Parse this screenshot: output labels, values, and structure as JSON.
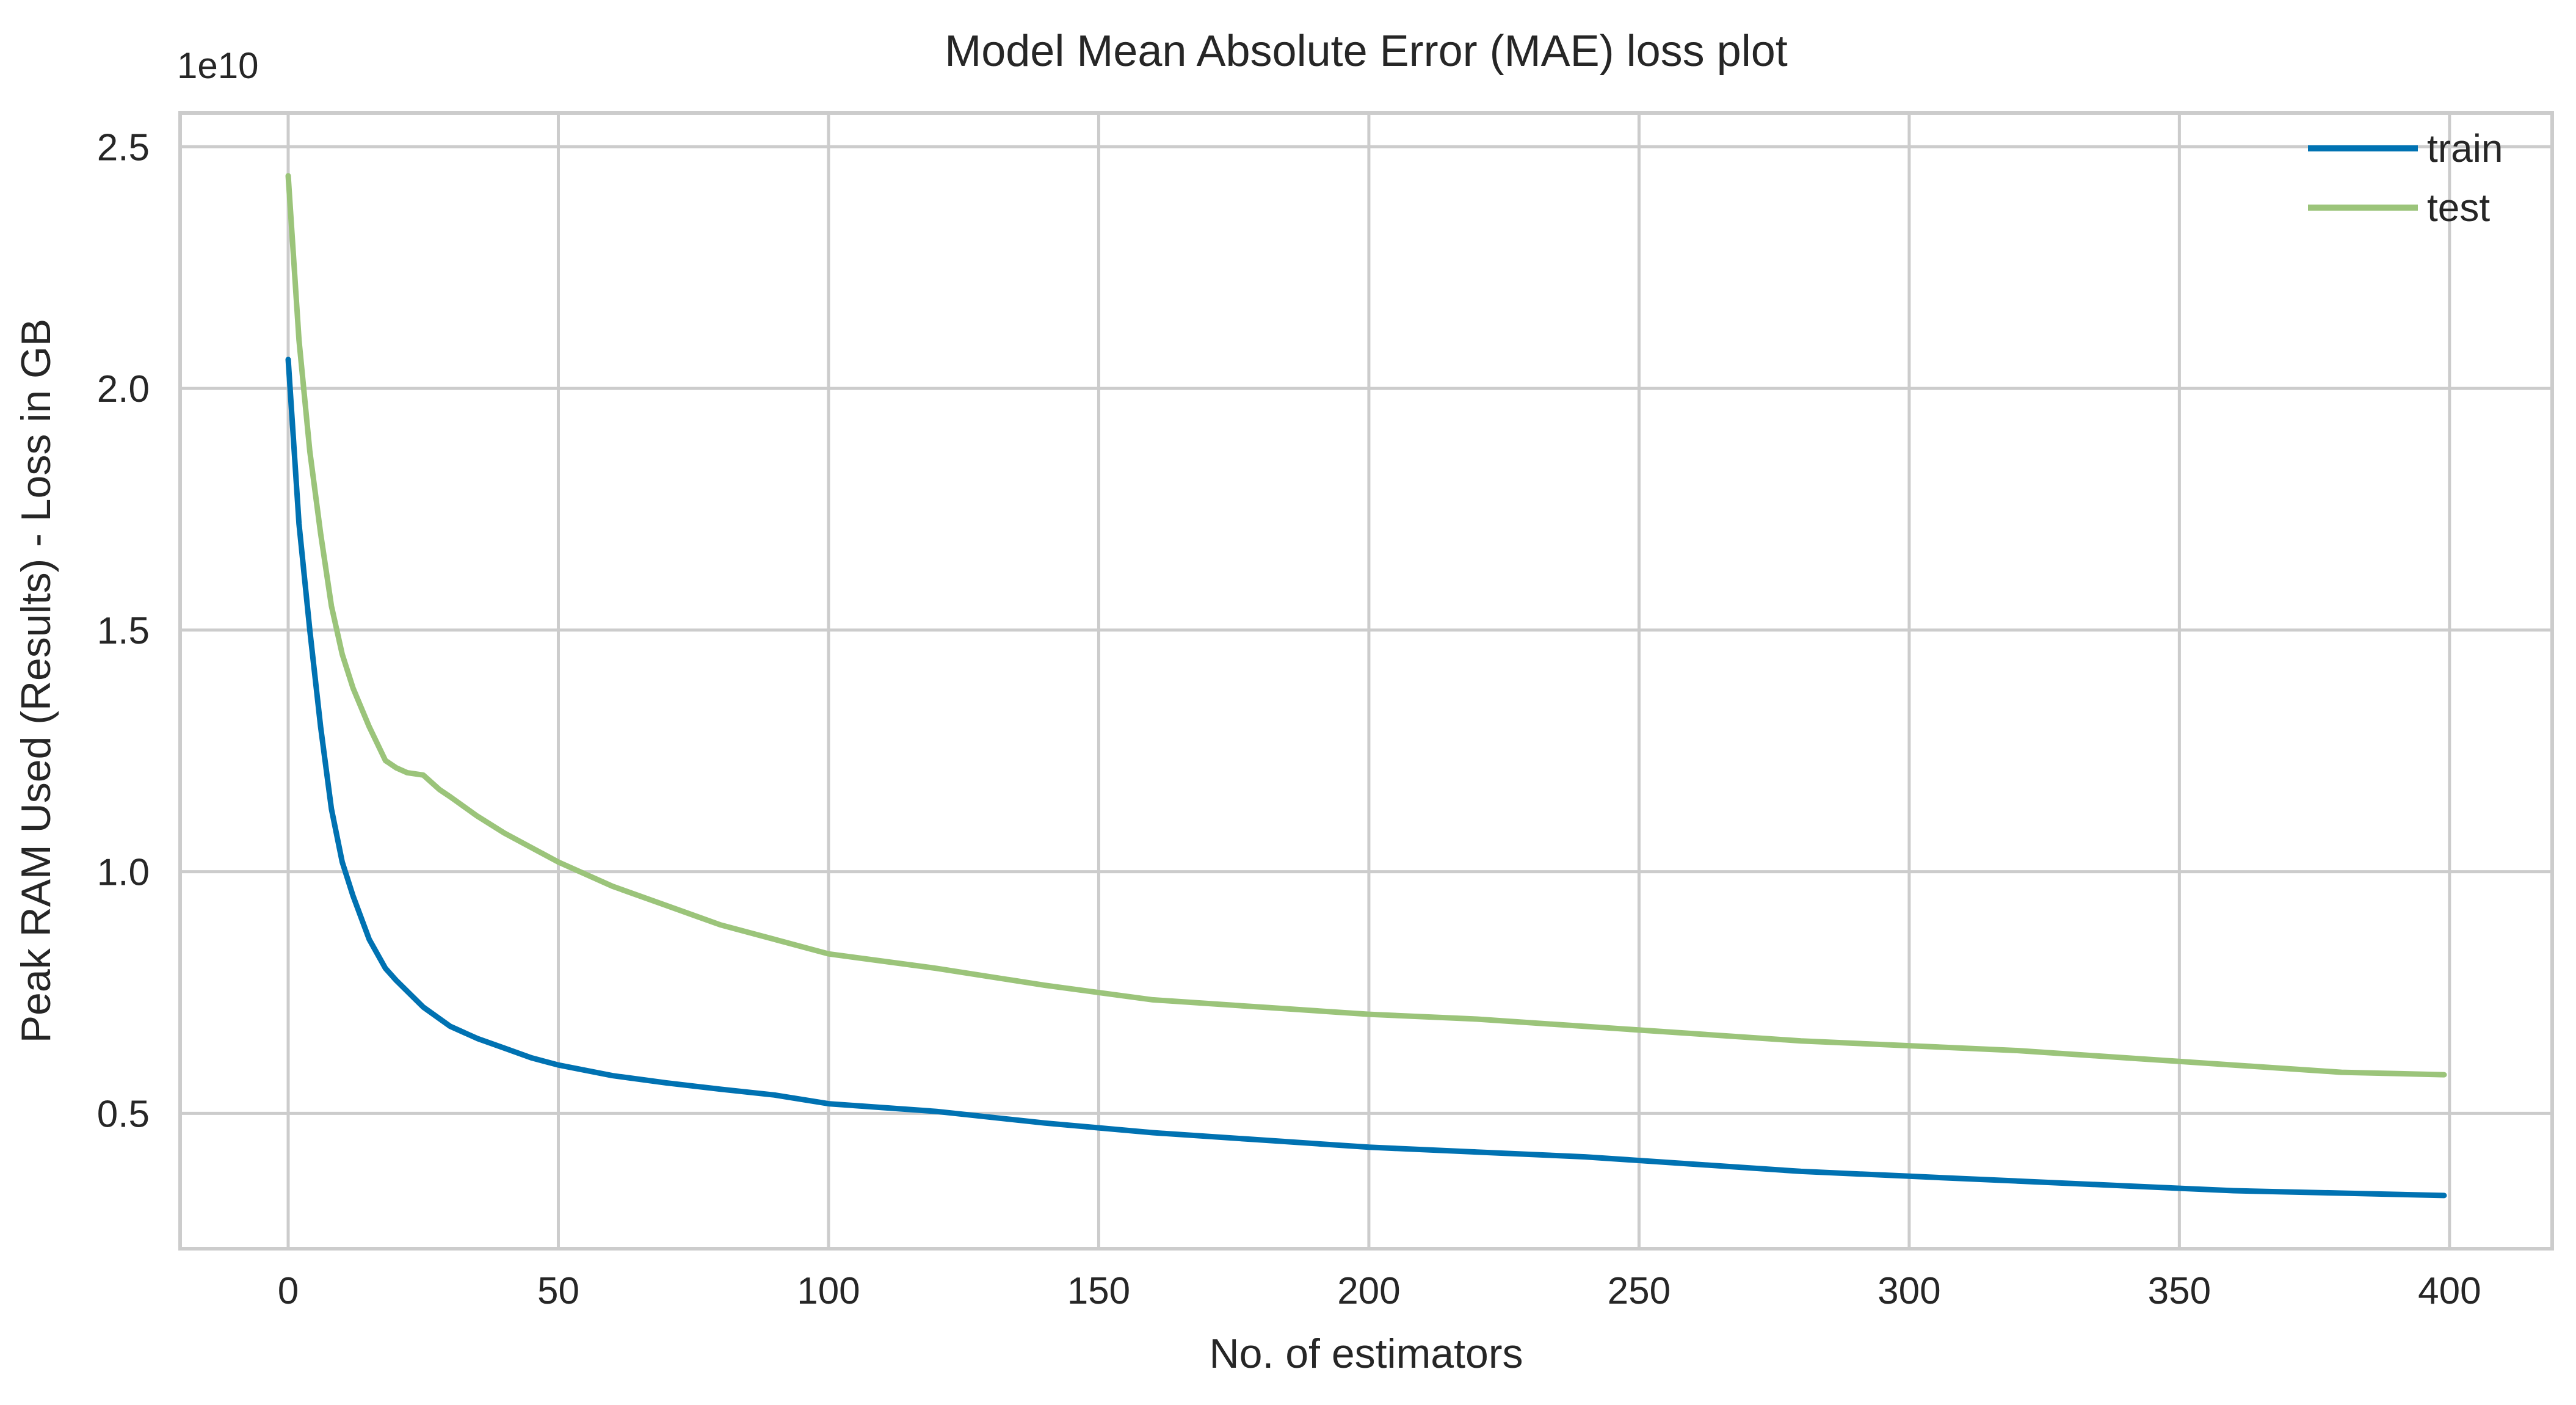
{
  "chart_data": {
    "type": "line",
    "title": "Model Mean Absolute Error (MAE) loss plot",
    "xlabel": "No. of estimators",
    "ylabel": "Peak RAM Used (Results) - Loss in GB",
    "y_offset_label": "1e10",
    "xlim": [
      -20,
      419
    ],
    "ylim": [
      0.22,
      2.57
    ],
    "y_scale_factor": 10000000000,
    "x_ticks": [
      0,
      50,
      100,
      150,
      200,
      250,
      300,
      350,
      400
    ],
    "x_tick_labels": [
      "0",
      "50",
      "100",
      "150",
      "200",
      "250",
      "300",
      "350",
      "400"
    ],
    "y_ticks": [
      0.5,
      1.0,
      1.5,
      2.0,
      2.5
    ],
    "y_tick_labels": [
      "0.5",
      "1.0",
      "1.5",
      "2.0",
      "2.5"
    ],
    "grid": true,
    "legend_position": "top-right",
    "colors": {
      "train": "#0072b2",
      "test": "#9bc47a",
      "grid": "#cccccc",
      "frame": "#cccccc"
    },
    "series": [
      {
        "name": "train",
        "x": [
          0,
          2,
          4,
          6,
          8,
          10,
          12,
          15,
          18,
          20,
          25,
          30,
          35,
          40,
          45,
          50,
          60,
          70,
          80,
          90,
          100,
          120,
          140,
          160,
          180,
          200,
          220,
          240,
          260,
          280,
          300,
          320,
          340,
          360,
          380,
          399
        ],
        "y": [
          2.06,
          1.72,
          1.5,
          1.3,
          1.13,
          1.02,
          0.95,
          0.86,
          0.8,
          0.775,
          0.72,
          0.68,
          0.655,
          0.635,
          0.615,
          0.6,
          0.578,
          0.563,
          0.55,
          0.538,
          0.52,
          0.504,
          0.48,
          0.46,
          0.445,
          0.43,
          0.42,
          0.41,
          0.395,
          0.38,
          0.37,
          0.36,
          0.35,
          0.34,
          0.335,
          0.33
        ]
      },
      {
        "name": "test",
        "x": [
          0,
          2,
          4,
          6,
          8,
          10,
          12,
          15,
          18,
          20,
          22,
          25,
          28,
          30,
          35,
          40,
          45,
          50,
          60,
          70,
          80,
          90,
          100,
          120,
          140,
          160,
          180,
          200,
          220,
          240,
          260,
          280,
          300,
          320,
          340,
          360,
          380,
          399
        ],
        "y": [
          2.44,
          2.1,
          1.87,
          1.7,
          1.55,
          1.45,
          1.38,
          1.3,
          1.23,
          1.215,
          1.205,
          1.2,
          1.17,
          1.155,
          1.115,
          1.08,
          1.05,
          1.02,
          0.97,
          0.93,
          0.89,
          0.86,
          0.83,
          0.8,
          0.765,
          0.735,
          0.72,
          0.705,
          0.695,
          0.68,
          0.665,
          0.65,
          0.64,
          0.63,
          0.615,
          0.6,
          0.585,
          0.58
        ]
      }
    ]
  }
}
